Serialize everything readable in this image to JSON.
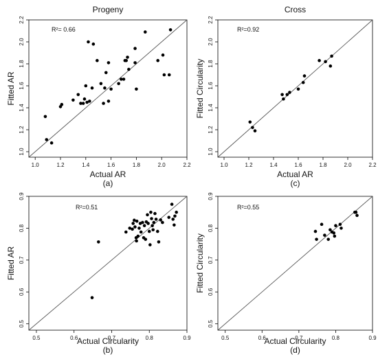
{
  "chart_data": [
    {
      "type": "scatter",
      "title": "Progeny",
      "xlabel": "Actual AR",
      "ylabel": "Fitted AR",
      "caption": "(a)",
      "r2_label": "R²= 0.66",
      "xlim": [
        0.95,
        2.2
      ],
      "ylim": [
        0.95,
        2.2
      ],
      "xticks": [
        "1.0",
        "1.2",
        "1.4",
        "1.6",
        "1.8",
        "2.0",
        "2.2"
      ],
      "yticks": [
        "1.0",
        "1.2",
        "1.4",
        "1.6",
        "1.8",
        "2.0",
        "2.2"
      ],
      "tick_values_x": [
        1.0,
        1.2,
        1.4,
        1.6,
        1.8,
        2.0,
        2.2
      ],
      "tick_values_y": [
        1.0,
        1.2,
        1.4,
        1.6,
        1.8,
        2.0,
        2.2
      ],
      "reference_line": "y = x",
      "points": [
        [
          1.08,
          1.32
        ],
        [
          1.09,
          1.11
        ],
        [
          1.13,
          1.08
        ],
        [
          1.2,
          1.41
        ],
        [
          1.21,
          1.43
        ],
        [
          1.3,
          1.47
        ],
        [
          1.34,
          1.52
        ],
        [
          1.36,
          1.44
        ],
        [
          1.38,
          1.44
        ],
        [
          1.39,
          1.48
        ],
        [
          1.4,
          1.6
        ],
        [
          1.41,
          1.45
        ],
        [
          1.42,
          2.0
        ],
        [
          1.43,
          1.46
        ],
        [
          1.45,
          1.58
        ],
        [
          1.46,
          1.98
        ],
        [
          1.49,
          1.83
        ],
        [
          1.52,
          1.62
        ],
        [
          1.54,
          1.44
        ],
        [
          1.55,
          1.58
        ],
        [
          1.56,
          1.72
        ],
        [
          1.58,
          1.81
        ],
        [
          1.58,
          1.46
        ],
        [
          1.6,
          1.57
        ],
        [
          1.66,
          1.62
        ],
        [
          1.68,
          1.66
        ],
        [
          1.7,
          1.66
        ],
        [
          1.71,
          1.83
        ],
        [
          1.72,
          1.83
        ],
        [
          1.73,
          1.86
        ],
        [
          1.74,
          1.75
        ],
        [
          1.79,
          1.81
        ],
        [
          1.79,
          1.94
        ],
        [
          1.8,
          1.57
        ],
        [
          1.87,
          2.09
        ],
        [
          1.97,
          1.83
        ],
        [
          2.01,
          1.88
        ],
        [
          2.02,
          1.7
        ],
        [
          2.06,
          1.7
        ],
        [
          2.07,
          2.11
        ]
      ]
    },
    {
      "type": "scatter",
      "title": "Cross",
      "xlabel": "Actual AR",
      "ylabel": "Fitted Circularity",
      "caption": "(c)",
      "r2_label": "R²=0.92",
      "xlim": [
        0.95,
        2.2
      ],
      "ylim": [
        0.95,
        2.2
      ],
      "xticks": [
        "1.0",
        "1.2",
        "1.4",
        "1.6",
        "1.8",
        "2.0",
        "2.2"
      ],
      "yticks": [
        "1.0",
        "1.2",
        "1.4",
        "1.6",
        "1.8",
        "2.0",
        "2.2"
      ],
      "tick_values_x": [
        1.0,
        1.2,
        1.4,
        1.6,
        1.8,
        2.0,
        2.2
      ],
      "tick_values_y": [
        1.0,
        1.2,
        1.4,
        1.6,
        1.8,
        2.0,
        2.2
      ],
      "reference_line": "y = x",
      "points": [
        [
          1.21,
          1.27
        ],
        [
          1.23,
          1.22
        ],
        [
          1.25,
          1.19
        ],
        [
          1.47,
          1.52
        ],
        [
          1.48,
          1.48
        ],
        [
          1.51,
          1.52
        ],
        [
          1.53,
          1.54
        ],
        [
          1.6,
          1.57
        ],
        [
          1.64,
          1.63
        ],
        [
          1.65,
          1.69
        ],
        [
          1.77,
          1.83
        ],
        [
          1.82,
          1.82
        ],
        [
          1.86,
          1.78
        ],
        [
          1.87,
          1.87
        ]
      ]
    },
    {
      "type": "scatter",
      "title": "",
      "xlabel": "Actual Circularity",
      "ylabel": "Fitted AR",
      "caption": "(b)",
      "r2_label": "R²=0.51",
      "xlim": [
        0.48,
        0.9
      ],
      "ylim": [
        0.48,
        0.9
      ],
      "xticks": [
        "0.5",
        "0.6",
        "0.7",
        "0.8",
        "0.9"
      ],
      "yticks": [
        "0.5",
        "0.6",
        "0.7",
        "0.8",
        "0.9"
      ],
      "tick_values_x": [
        0.5,
        0.6,
        0.7,
        0.8,
        0.9
      ],
      "tick_values_y": [
        0.5,
        0.6,
        0.7,
        0.8,
        0.9
      ],
      "reference_line": "y = x",
      "points": [
        [
          0.648,
          0.582
        ],
        [
          0.665,
          0.757
        ],
        [
          0.738,
          0.788
        ],
        [
          0.748,
          0.8
        ],
        [
          0.755,
          0.797
        ],
        [
          0.757,
          0.815
        ],
        [
          0.76,
          0.825
        ],
        [
          0.762,
          0.804
        ],
        [
          0.765,
          0.77
        ],
        [
          0.766,
          0.76
        ],
        [
          0.767,
          0.822
        ],
        [
          0.77,
          0.775
        ],
        [
          0.773,
          0.8
        ],
        [
          0.776,
          0.815
        ],
        [
          0.778,
          0.788
        ],
        [
          0.782,
          0.818
        ],
        [
          0.785,
          0.77
        ],
        [
          0.787,
          0.808
        ],
        [
          0.79,
          0.765
        ],
        [
          0.792,
          0.82
        ],
        [
          0.795,
          0.842
        ],
        [
          0.797,
          0.815
        ],
        [
          0.8,
          0.79
        ],
        [
          0.802,
          0.748
        ],
        [
          0.804,
          0.85
        ],
        [
          0.806,
          0.83
        ],
        [
          0.808,
          0.808
        ],
        [
          0.81,
          0.795
        ],
        [
          0.812,
          0.818
        ],
        [
          0.815,
          0.846
        ],
        [
          0.818,
          0.828
        ],
        [
          0.822,
          0.79
        ],
        [
          0.825,
          0.757
        ],
        [
          0.83,
          0.826
        ],
        [
          0.835,
          0.818
        ],
        [
          0.852,
          0.834
        ],
        [
          0.86,
          0.875
        ],
        [
          0.863,
          0.828
        ],
        [
          0.866,
          0.81
        ],
        [
          0.868,
          0.838
        ],
        [
          0.872,
          0.85
        ]
      ]
    },
    {
      "type": "scatter",
      "title": "",
      "xlabel": "Actual Circularity",
      "ylabel": "Fitted Circularity",
      "caption": "(d)",
      "r2_label": "R²=0.55",
      "xlim": [
        0.48,
        0.9
      ],
      "ylim": [
        0.48,
        0.9
      ],
      "xticks": [
        "0.5",
        "0.6",
        "0.7",
        "0.8",
        "0.9"
      ],
      "yticks": [
        "0.5",
        "0.6",
        "0.7",
        "0.8",
        "0.9"
      ],
      "tick_values_x": [
        0.5,
        0.6,
        0.7,
        0.8,
        0.9
      ],
      "tick_values_y": [
        0.5,
        0.6,
        0.7,
        0.8,
        0.9
      ],
      "reference_line": "y = x",
      "points": [
        [
          0.745,
          0.79
        ],
        [
          0.748,
          0.765
        ],
        [
          0.762,
          0.812
        ],
        [
          0.77,
          0.778
        ],
        [
          0.78,
          0.765
        ],
        [
          0.785,
          0.795
        ],
        [
          0.79,
          0.788
        ],
        [
          0.795,
          0.785
        ],
        [
          0.797,
          0.775
        ],
        [
          0.8,
          0.808
        ],
        [
          0.812,
          0.812
        ],
        [
          0.815,
          0.8
        ],
        [
          0.852,
          0.85
        ],
        [
          0.855,
          0.85
        ],
        [
          0.858,
          0.84
        ]
      ]
    }
  ]
}
